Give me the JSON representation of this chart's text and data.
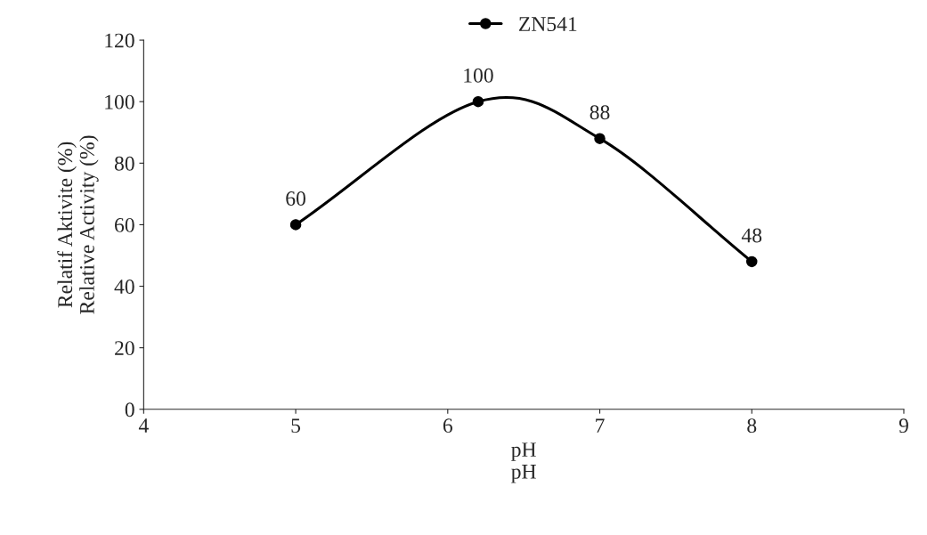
{
  "chart_data": {
    "type": "line",
    "xlabel": "pH\npH",
    "ylabel": "Relatif Aktivite (%)\nRelative Activity (%)",
    "x": [
      5,
      6.2,
      7,
      8
    ],
    "series": [
      {
        "name": "ZN541",
        "color": "#000000",
        "values": [
          60,
          100,
          88,
          48
        ]
      }
    ],
    "xlim": [
      4,
      9
    ],
    "xticks": [
      4,
      5,
      6,
      7,
      8,
      9
    ],
    "ylim": [
      0,
      120
    ],
    "yticks": [
      0,
      20,
      40,
      60,
      80,
      100,
      120
    ],
    "grid": false,
    "legend": "top",
    "marker": "circle",
    "line_style": "solid",
    "data_labels": true
  }
}
